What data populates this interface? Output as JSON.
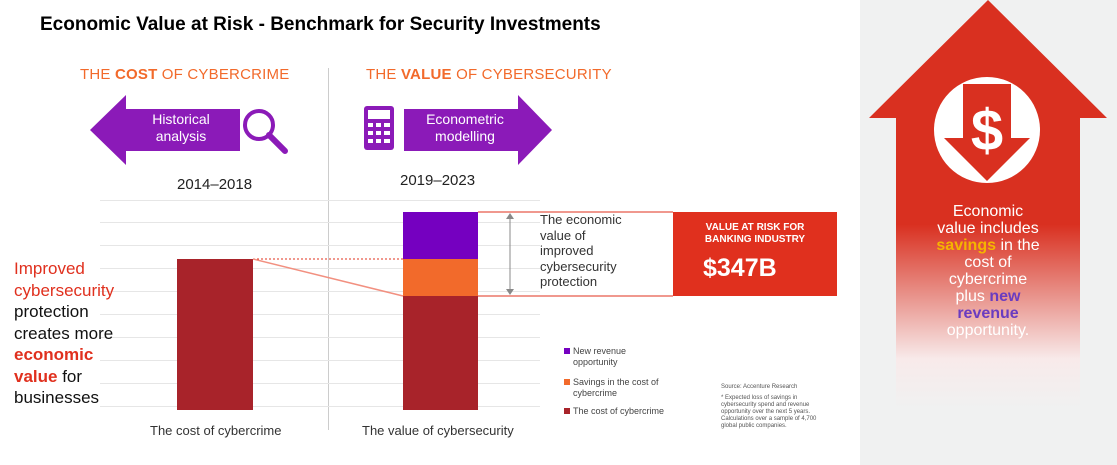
{
  "title": "Economic Value at Risk - Benchmark for Security Investments",
  "left_section": {
    "prefix": "THE ",
    "emph": "COST",
    "suffix": " OF CYBERCRIME",
    "arrow_label_1": "Historical",
    "arrow_label_2": "analysis",
    "icon": "magnifier-icon",
    "years": "2014–2018"
  },
  "right_section": {
    "prefix": "THE ",
    "emph": "VALUE",
    "suffix": " OF CYBERSECURITY",
    "arrow_label_1": "Econometric",
    "arrow_label_2": "modelling",
    "icon": "calculator-icon",
    "years": "2019–2023"
  },
  "annotation": [
    "The economic",
    "value of",
    "improved",
    "cybersecurity",
    "protection"
  ],
  "value_box": {
    "label_1": "VALUE AT RISK FOR",
    "label_2": "BANKING INDUSTRY",
    "value": "$347B"
  },
  "bars": {
    "left_label": "The cost of cybercrime",
    "right_label": "The value of cybersecurity"
  },
  "legend": [
    {
      "label_1": "New revenue",
      "label_2": "opportunity",
      "color": "#7500c0"
    },
    {
      "label_1": "Savings in the cost of",
      "label_2": "cybercrime",
      "color": "#f26a2b"
    },
    {
      "label_1": "The cost of cybercrime",
      "label_2": "",
      "color": "#a8232a"
    }
  ],
  "source": "Source: Accenture Research",
  "footnote": [
    "* Expected loss of savings in",
    "cybersecurity spend and revenue",
    "opportunity over the next 5 years.",
    "Calculations over a sample of 4,700",
    "global public companies."
  ],
  "left_text": {
    "l1": "Improved",
    "l2": "cybersecurity",
    "l3": "protection",
    "l4": "creates more",
    "l5": "economic",
    "l6": "value",
    "l7": " for",
    "l8": "businesses"
  },
  "right_panel": {
    "icon": "dollar-down-arrow-icon",
    "t1": "Economic",
    "t2": "value includes",
    "t3": "savings",
    "t4": " in the",
    "t5": "cost of",
    "t6": "cybercrime",
    "t7": "plus ",
    "t8": "new",
    "t9": "revenue",
    "t10": "opportunity."
  },
  "colors": {
    "purple": "#7500c0",
    "orange": "#f26a2b",
    "dark_red": "#a8232a",
    "red": "#e0301e",
    "panel_red": "#d93020"
  }
}
